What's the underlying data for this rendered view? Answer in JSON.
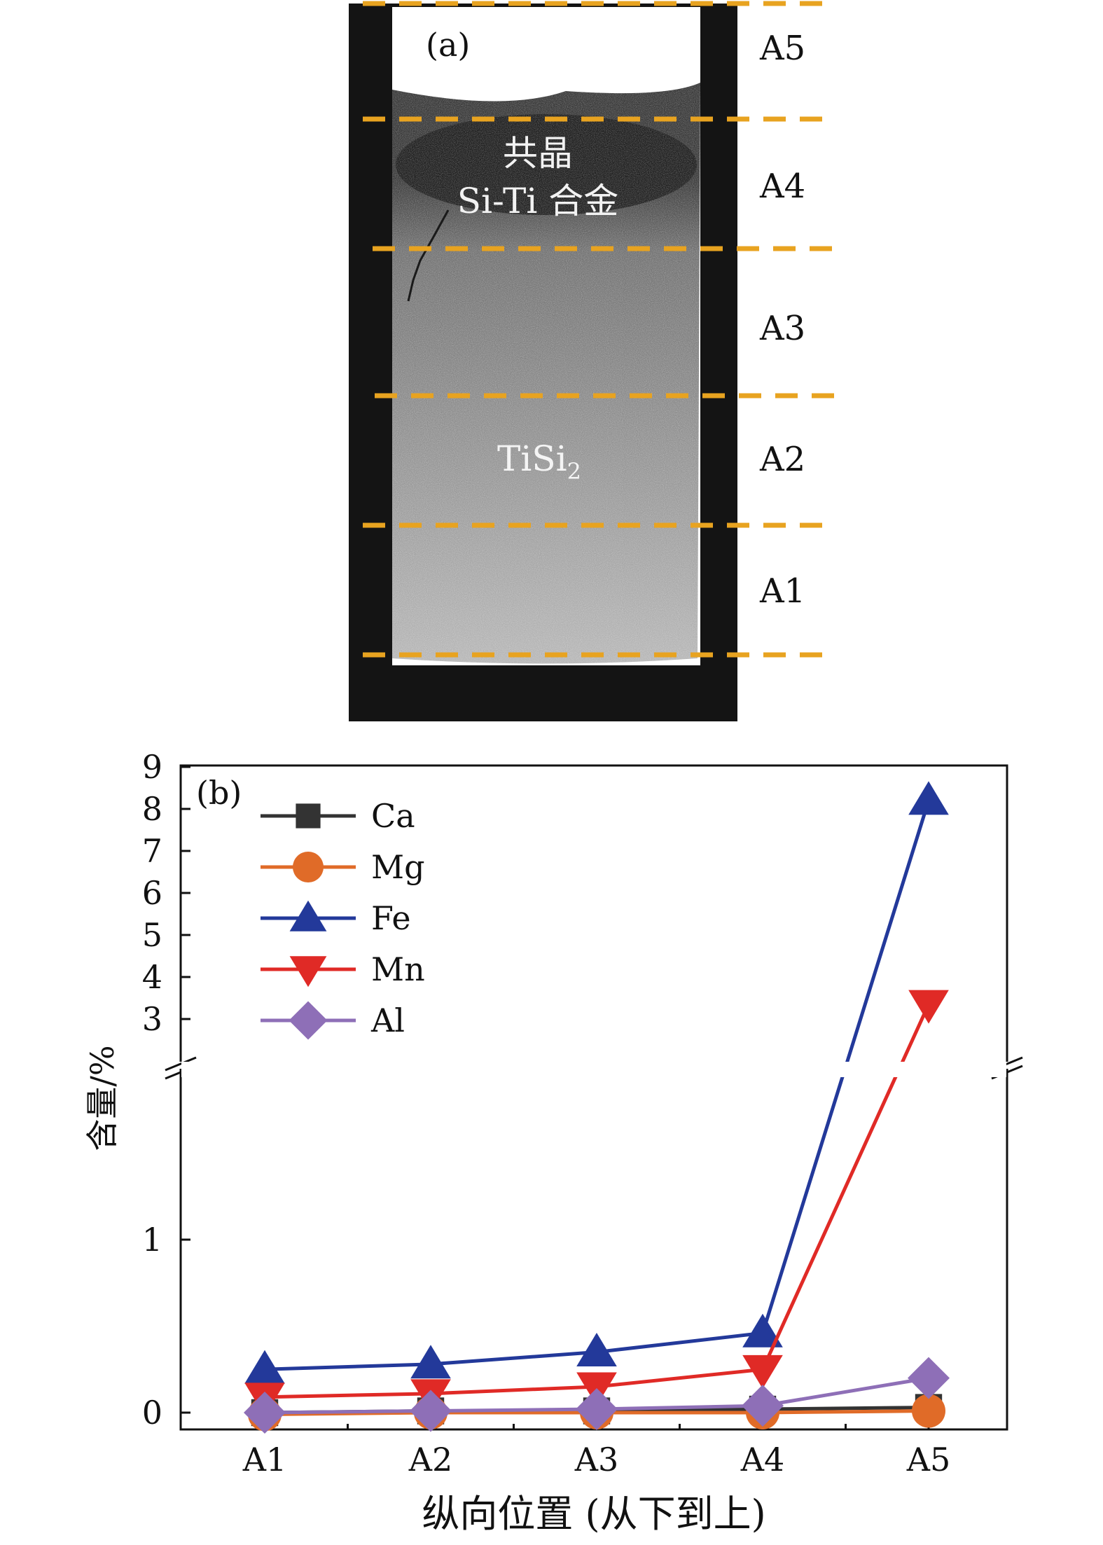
{
  "panel_a": {
    "label": "(a)",
    "zones": [
      "A5",
      "A4",
      "A3",
      "A2",
      "A1"
    ],
    "region_label_eutectic_line1": "共晶",
    "region_label_eutectic_line2": "Si-Ti 合金",
    "region_label_tisi2_main": "TiSi",
    "region_label_tisi2_sub": "2",
    "colors": {
      "divider": "#e8a320",
      "crucible": "#141414"
    }
  },
  "chart_data": {
    "type": "line",
    "panel_label": "(b)",
    "categories": [
      "A1",
      "A2",
      "A3",
      "A4",
      "A5"
    ],
    "xlabel": "纵向位置 (从下到上)",
    "ylabel": "含量/%",
    "axis_break": {
      "lower_range": [
        0,
        1
      ],
      "upper_range": [
        3,
        9
      ]
    },
    "lower_ticks": [
      "0",
      "1"
    ],
    "upper_ticks": [
      "3",
      "4",
      "5",
      "6",
      "7",
      "8",
      "9"
    ],
    "legend_position": "top-left",
    "series": [
      {
        "name": "Ca",
        "marker": "square",
        "color": "#333333",
        "values": [
          0.0,
          0.01,
          0.01,
          0.02,
          0.03
        ]
      },
      {
        "name": "Mg",
        "marker": "circle",
        "color": "#e06b28",
        "values": [
          -0.01,
          0.0,
          0.0,
          0.0,
          0.01
        ]
      },
      {
        "name": "Fe",
        "marker": "triangle-up",
        "color": "#23399a",
        "values": [
          0.25,
          0.28,
          0.35,
          0.46,
          8.2
        ]
      },
      {
        "name": "Mn",
        "marker": "triangle-down",
        "color": "#e02a26",
        "values": [
          0.09,
          0.11,
          0.15,
          0.25,
          3.35
        ]
      },
      {
        "name": "Al",
        "marker": "diamond",
        "color": "#8e6fb7",
        "values": [
          0.0,
          0.01,
          0.02,
          0.04,
          0.2
        ]
      }
    ]
  }
}
